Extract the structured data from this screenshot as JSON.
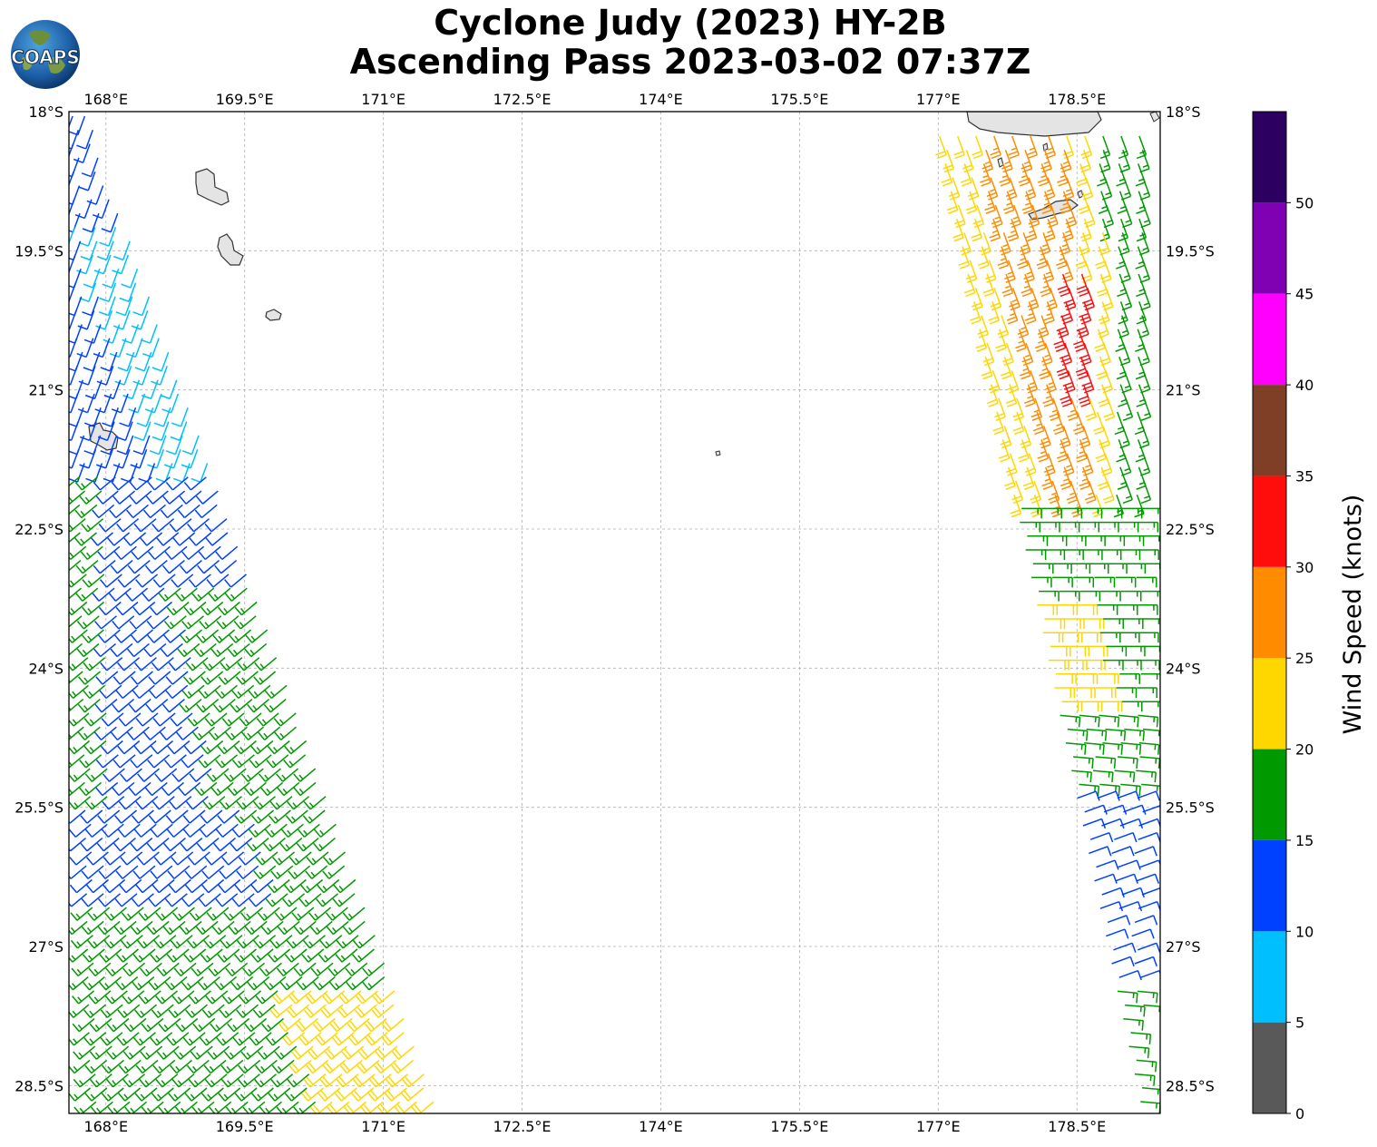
{
  "title": {
    "line1": "Cyclone Judy (2023) HY-2B",
    "line2": "Ascending Pass 2023-03-02 07:37Z"
  },
  "logo": {
    "text": "COAPS",
    "icon": "globe-logo-icon"
  },
  "map": {
    "lon_labels": [
      "168°E",
      "169.5°E",
      "171°E",
      "172.5°E",
      "174°E",
      "175.5°E",
      "177°E",
      "178.5°E"
    ],
    "lat_labels": [
      "18°S",
      "19.5°S",
      "21°S",
      "22.5°S",
      "24°S",
      "25.5°S",
      "27°S",
      "28.5°S"
    ],
    "lon_values": [
      168,
      169.5,
      171,
      172.5,
      174,
      175.5,
      177,
      178.5
    ],
    "lat_values": [
      -18,
      -19.5,
      -21,
      -22.5,
      -24,
      -25.5,
      -27,
      -28.5
    ],
    "lon_range": [
      167.6,
      179.4
    ],
    "lat_range": [
      -28.8,
      -18.0
    ],
    "grid": true
  },
  "colorbar": {
    "label": "Wind Speed (knots)",
    "ticks": [
      "0",
      "5",
      "10",
      "15",
      "20",
      "25",
      "30",
      "35",
      "40",
      "45",
      "50"
    ],
    "bins": [
      {
        "from": 0,
        "to": 5,
        "color": "#595959"
      },
      {
        "from": 5,
        "to": 10,
        "color": "#00bfff"
      },
      {
        "from": 10,
        "to": 15,
        "color": "#0040ff"
      },
      {
        "from": 15,
        "to": 20,
        "color": "#009900"
      },
      {
        "from": 20,
        "to": 25,
        "color": "#ffd700"
      },
      {
        "from": 25,
        "to": 30,
        "color": "#ff8c00"
      },
      {
        "from": 30,
        "to": 35,
        "color": "#ff0d0d"
      },
      {
        "from": 35,
        "to": 40,
        "color": "#7f3f26"
      },
      {
        "from": 40,
        "to": 45,
        "color": "#ff00ff"
      },
      {
        "from": 45,
        "to": 50,
        "color": "#8000b3"
      },
      {
        "from": 50,
        "to": 55,
        "color": "#2b0060"
      }
    ]
  }
}
